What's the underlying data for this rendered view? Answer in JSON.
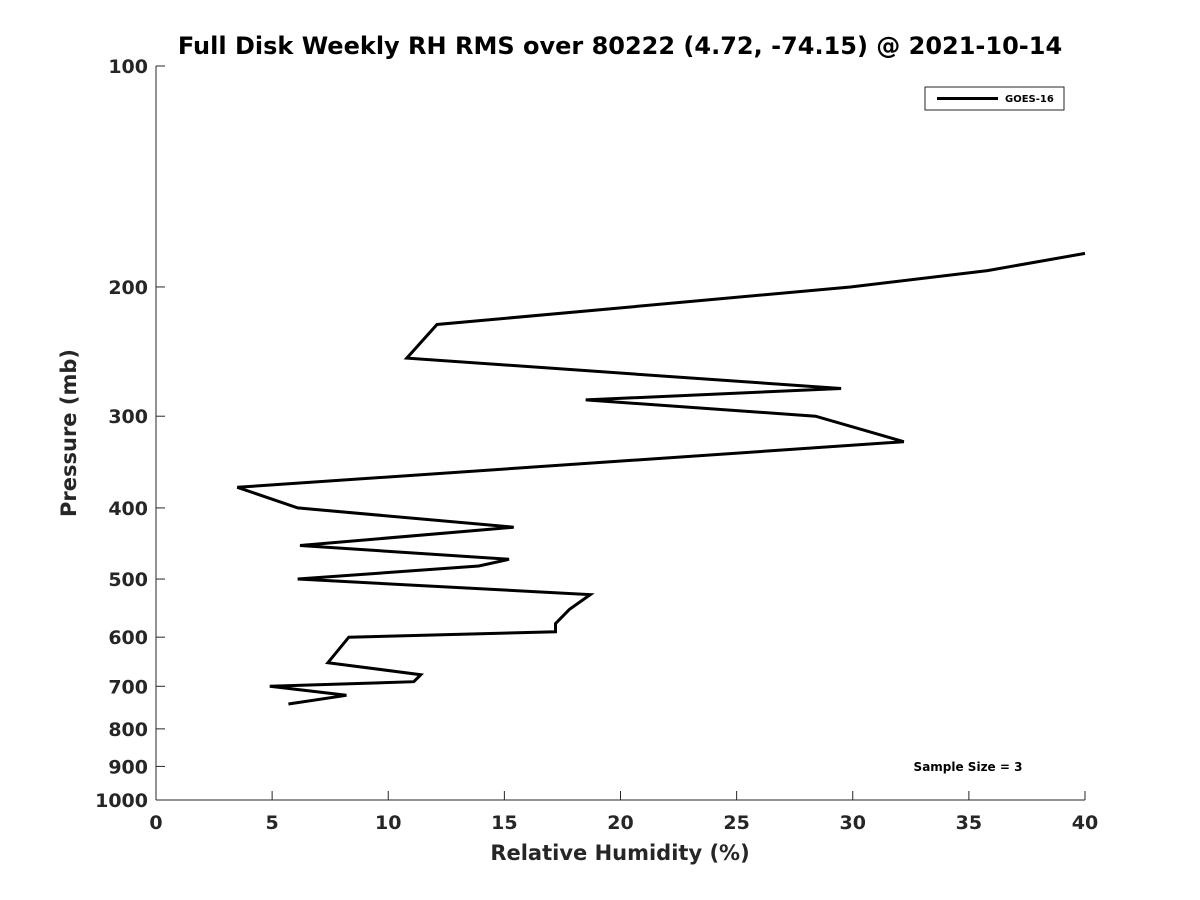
{
  "chart_data": {
    "type": "line",
    "title": "Full Disk Weekly RH RMS over 80222 (4.72, -74.15) @ 2021-10-14",
    "xlabel": "Relative Humidity (%)",
    "ylabel": "Pressure (mb)",
    "xlim": [
      0,
      40
    ],
    "ylim": [
      1000,
      100
    ],
    "y_scale": "log",
    "x_ticks": [
      0,
      5,
      10,
      15,
      20,
      25,
      30,
      35,
      40
    ],
    "y_ticks": [
      100,
      200,
      300,
      400,
      500,
      600,
      700,
      800,
      900,
      1000
    ],
    "legend_location": "top-right",
    "annotation": "Sample Size = 3",
    "series": [
      {
        "name": "GOES-16",
        "color": "#000000",
        "x": [
          40.0,
          35.8,
          29.9,
          12.1,
          10.8,
          29.5,
          18.5,
          28.4,
          32.2,
          3.5,
          6.1,
          15.4,
          6.2,
          15.2,
          13.9,
          6.1,
          18.7,
          17.8,
          17.2,
          17.2,
          8.3,
          7.4,
          11.4,
          11.1,
          4.9,
          8.2,
          5.7
        ],
        "y": [
          180,
          190,
          200,
          225,
          250,
          275,
          285,
          300,
          325,
          375,
          400,
          425,
          450,
          470,
          480,
          500,
          525,
          550,
          575,
          590,
          600,
          650,
          675,
          690,
          700,
          720,
          740
        ]
      }
    ]
  }
}
